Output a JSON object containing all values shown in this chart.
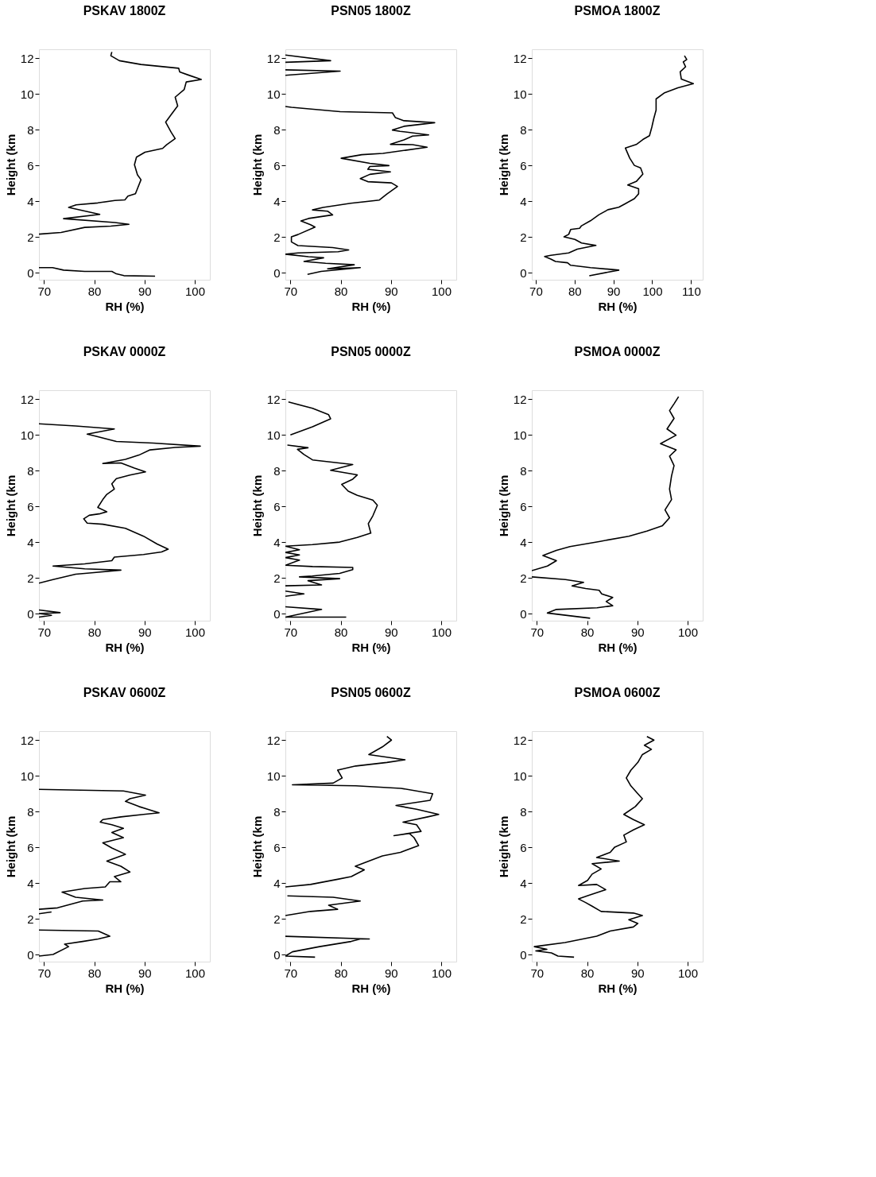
{
  "chart_data": [
    {
      "type": "line",
      "title": "PSKAV 1800Z",
      "xlabel": "RH (%)",
      "ylabel": "Height (km",
      "xlim": [
        69,
        103
      ],
      "ylim": [
        -0.4,
        12.5
      ],
      "xticks": [
        70,
        80,
        90,
        100
      ],
      "yticks": [
        0,
        2,
        4,
        6,
        8,
        10,
        12
      ],
      "grid": false,
      "series": [
        {
          "color": "#000000",
          "x": [
            92.1,
            85.9,
            84.4,
            83.5,
            78.1,
            73.9,
            71.7,
            69,
            null,
            69,
            73.4,
            78.1,
            83.3,
            86.9,
            84.1,
            73.9,
            81.1,
            74.9,
            76.4,
            80.7,
            84.1,
            86.1,
            86.7,
            88.2,
            88.4,
            89.3,
            88.6,
            88.0,
            88.4,
            90.1,
            93.6,
            94.4,
            96.1,
            95.3,
            94.2,
            95.3,
            96.6,
            96.1,
            97.9,
            98.3,
            101.3,
            98.7,
            97.0,
            96.8,
            89.3,
            85.0,
            83.3,
            83.5
          ],
          "values": [
            -0.2,
            -0.17,
            -0.07,
            0.07,
            0.07,
            0.14,
            0.28,
            0.28,
            null,
            2.15,
            2.25,
            2.53,
            2.6,
            2.7,
            2.8,
            3.02,
            3.26,
            3.65,
            3.79,
            3.9,
            4.04,
            4.07,
            4.28,
            4.42,
            4.56,
            5.2,
            5.47,
            6.04,
            6.46,
            6.74,
            6.95,
            7.16,
            7.5,
            7.86,
            8.42,
            8.84,
            9.33,
            9.82,
            10.25,
            10.67,
            10.81,
            11.06,
            11.23,
            11.44,
            11.65,
            11.86,
            12.14,
            12.35
          ]
        }
      ]
    },
    {
      "type": "line",
      "title": "PSN05 1800Z",
      "xlabel": "RH (%)",
      "ylabel": "Height (km",
      "xlim": [
        69,
        103
      ],
      "ylim": [
        -0.4,
        12.5
      ],
      "xticks": [
        70,
        80,
        90,
        100
      ],
      "yticks": [
        0,
        2,
        4,
        6,
        8,
        10,
        12
      ],
      "grid": false,
      "series": [
        {
          "color": "#000000",
          "x": [
            73.4,
            76.1,
            83.9,
            77.4,
            82.7,
            77.0,
            72.7,
            76.6,
            73.6,
            69,
            71.5,
            79.5,
            81.6,
            78.4,
            71.5,
            70.2,
            70.2,
            71.5,
            74.9,
            74.0,
            72.1,
            73.6,
            78.4,
            77.4,
            74.4,
            76.5,
            82.0,
            87.7,
            89.2,
            91.3,
            90.1,
            85.4,
            83.9,
            85.8,
            89.9,
            85.4,
            85.8,
            89.6,
            85.8,
            80.1,
            84.2,
            88.4,
            97.2,
            94.3,
            89.9,
            92.6,
            94.3,
            97.5,
            91.8,
            90.3,
            92.6,
            98.7,
            92.6,
            90.9,
            90.3,
            79.9,
            70.2,
            69,
            null,
            69,
            79.9,
            69,
            null,
            69,
            78.0,
            69
          ],
          "values": [
            -0.1,
            0.07,
            0.28,
            0.21,
            0.44,
            0.52,
            0.62,
            0.83,
            0.89,
            1.03,
            1.1,
            1.17,
            1.27,
            1.4,
            1.51,
            1.72,
            2.0,
            2.13,
            2.55,
            2.68,
            2.89,
            3.03,
            3.23,
            3.44,
            3.51,
            3.65,
            3.88,
            4.06,
            4.4,
            4.82,
            5.02,
            5.09,
            5.26,
            5.5,
            5.64,
            5.78,
            5.94,
            5.99,
            6.12,
            6.4,
            6.6,
            6.67,
            7.02,
            7.16,
            7.18,
            7.43,
            7.64,
            7.71,
            7.91,
            7.98,
            8.19,
            8.39,
            8.5,
            8.67,
            8.94,
            9.01,
            9.25,
            9.3,
            null,
            11.04,
            11.28,
            11.35,
            null,
            11.77,
            11.86,
            12.18
          ]
        }
      ]
    },
    {
      "type": "line",
      "title": "PSMOA 1800Z",
      "xlabel": "RH (%)",
      "ylabel": "Height (km",
      "xlim": [
        69,
        113
      ],
      "ylim": [
        -0.4,
        12.5
      ],
      "xticks": [
        70,
        80,
        90,
        100,
        110
      ],
      "yticks": [
        0,
        2,
        4,
        6,
        8,
        10,
        12
      ],
      "grid": false,
      "series": [
        {
          "color": "#000000",
          "x": [
            83.8,
            91.4,
            84.1,
            79.0,
            78.2,
            75.1,
            73.9,
            72.3,
            73.9,
            78.5,
            80.7,
            85.5,
            81.8,
            80.1,
            77.3,
            78.5,
            79.0,
            81.3,
            81.8,
            84.1,
            86.3,
            88.6,
            91.4,
            93.1,
            95.4,
            96.5,
            96.5,
            93.7,
            95.9,
            97.6,
            97.0,
            95.4,
            94.2,
            93.1,
            95.9,
            97.6,
            99.3,
            99.9,
            100.4,
            101.0,
            101.0,
            103.2,
            106.6,
            110.6,
            107.5,
            107.2,
            108.6,
            108.0,
            108.9,
            108.3
          ],
          "values": [
            -0.18,
            0.14,
            0.28,
            0.41,
            0.55,
            0.62,
            0.76,
            0.9,
            0.97,
            1.1,
            1.31,
            1.52,
            1.66,
            1.86,
            2.0,
            2.14,
            2.41,
            2.48,
            2.62,
            2.9,
            3.24,
            3.52,
            3.66,
            3.86,
            4.14,
            4.41,
            4.69,
            4.9,
            5.1,
            5.52,
            5.86,
            6.0,
            6.41,
            6.97,
            7.17,
            7.45,
            7.66,
            8.14,
            8.62,
            9.1,
            9.72,
            10.07,
            10.34,
            10.58,
            10.83,
            11.24,
            11.52,
            11.79,
            11.93,
            12.14
          ]
        }
      ]
    },
    {
      "type": "line",
      "title": "PSKAV 0000Z",
      "xlabel": "RH (%)",
      "ylabel": "Height (km",
      "xlim": [
        69,
        103
      ],
      "ylim": [
        -0.4,
        12.5
      ],
      "xticks": [
        70,
        80,
        90,
        100
      ],
      "yticks": [
        0,
        2,
        4,
        6,
        8,
        10,
        12
      ],
      "grid": false,
      "series": [
        {
          "color": "#000000",
          "x": [
            69,
            71.5,
            69,
            73.2,
            69,
            null,
            69,
            71.8,
            76.3,
            79.5,
            85.3,
            78.1,
            71.8,
            78.1,
            83.5,
            84.0,
            89.8,
            93.4,
            94.7,
            92.5,
            89.8,
            86.2,
            81.7,
            78.6,
            77.9,
            79.0,
            81.2,
            82.5,
            80.7,
            81.7,
            82.5,
            84.0,
            83.5,
            84.4,
            87.1,
            90.2,
            88.0,
            85.3,
            81.7,
            86.2,
            88.9,
            91.1,
            96.1,
            101.1,
            91.7,
            84.4,
            80.4,
            78.6,
            84.0,
            76.3,
            69
          ],
          "values": [
            -0.2,
            -0.1,
            0,
            0.05,
            0.2,
            null,
            1.7,
            1.9,
            2.2,
            2.28,
            2.43,
            2.5,
            2.66,
            2.78,
            2.96,
            3.16,
            3.3,
            3.45,
            3.6,
            3.89,
            4.33,
            4.77,
            5.0,
            5.06,
            5.3,
            5.5,
            5.59,
            5.7,
            5.94,
            6.38,
            6.67,
            6.97,
            7.26,
            7.55,
            7.75,
            7.93,
            8.14,
            8.43,
            8.4,
            8.63,
            8.87,
            9.16,
            9.3,
            9.37,
            9.54,
            9.63,
            9.92,
            10.04,
            10.33,
            10.5,
            10.62
          ]
        }
      ]
    },
    {
      "type": "line",
      "title": "PSN05 0000Z",
      "xlabel": "RH (%)",
      "ylabel": "Height (km",
      "xlim": [
        69,
        103
      ],
      "ylim": [
        -0.4,
        12.5
      ],
      "xticks": [
        70,
        80,
        90,
        100
      ],
      "yticks": [
        0,
        2,
        4,
        6,
        8,
        10,
        12
      ],
      "grid": false,
      "series": [
        {
          "color": "#000000",
          "x": [
            81.1,
            69,
            76.2,
            69,
            null,
            69,
            72.7,
            69,
            null,
            69,
            76.2,
            73.5,
            79.8,
            71.8,
            74.4,
            79.8,
            82.4,
            82.4,
            74.4,
            69,
            71.8,
            69,
            71.8,
            69,
            71.8,
            69,
            74.4,
            79.8,
            83.3,
            86.0,
            85.5,
            86.4,
            87.3,
            86.4,
            83.3,
            81.5,
            80.2,
            82.4,
            83.3,
            78.0,
            82.4,
            74.4,
            72.7,
            71.4,
            73.5,
            69.4,
            null,
            70,
            74.4,
            78.0,
            77.6,
            74.4,
            69.6
          ],
          "values": [
            -0.2,
            -0.2,
            0.23,
            0.38,
            null,
            0.97,
            1.1,
            1.26,
            null,
            1.55,
            1.6,
            1.84,
            1.95,
            2.05,
            2.1,
            2.25,
            2.46,
            2.58,
            2.63,
            2.7,
            2.99,
            3.13,
            3.28,
            3.42,
            3.57,
            3.77,
            3.86,
            4.0,
            4.26,
            4.5,
            5.03,
            5.47,
            6.06,
            6.35,
            6.62,
            6.85,
            7.23,
            7.52,
            7.76,
            8.02,
            8.34,
            8.6,
            8.9,
            9.19,
            9.28,
            9.43,
            null,
            10.0,
            10.45,
            10.9,
            11.13,
            11.49,
            11.84
          ]
        }
      ]
    },
    {
      "type": "line",
      "title": "PSMOA 0000Z",
      "xlabel": "RH (%)",
      "ylabel": "Height (km",
      "xlim": [
        69,
        103
      ],
      "ylim": [
        -0.4,
        12.5
      ],
      "xticks": [
        70,
        80,
        90,
        100
      ],
      "yticks": [
        0,
        2,
        4,
        6,
        8,
        10,
        12
      ],
      "grid": false,
      "series": [
        {
          "color": "#000000",
          "x": [
            80.6,
            72.1,
            73.9,
            82.0,
            85.1,
            83.8,
            85.1,
            82.9,
            82.4,
            79.7,
            77.0,
            79.3,
            75.7,
            69,
            null,
            69,
            72.1,
            73.9,
            71.2,
            73.9,
            76.6,
            82.6,
            88.3,
            91.9,
            95.0,
            96.4,
            95.5,
            96.8,
            96.4,
            96.8,
            97.3,
            96.4,
            97.7,
            94.6,
            97.7,
            95.9,
            97.3,
            96.4,
            97.3,
            98.2
          ],
          "values": [
            -0.26,
            0.03,
            0.23,
            0.32,
            0.44,
            0.67,
            0.9,
            1.1,
            1.3,
            1.4,
            1.55,
            1.75,
            1.9,
            2.05,
            null,
            2.4,
            2.66,
            2.96,
            3.25,
            3.54,
            3.75,
            4.04,
            4.33,
            4.62,
            4.92,
            5.36,
            5.8,
            6.38,
            6.97,
            7.7,
            8.28,
            8.81,
            9.16,
            9.51,
            9.98,
            10.33,
            10.92,
            11.36,
            11.74,
            12.14
          ]
        }
      ]
    },
    {
      "type": "line",
      "title": "PSKAV 0600Z",
      "xlabel": "RH (%)",
      "ylabel": "Height (km",
      "xlim": [
        69,
        103
      ],
      "ylim": [
        -0.4,
        12.5
      ],
      "xticks": [
        70,
        80,
        90,
        100
      ],
      "yticks": [
        0,
        2,
        4,
        6,
        8,
        10,
        12
      ],
      "grid": false,
      "series": [
        {
          "color": "#000000",
          "x": [
            69,
            71.8,
            74.9,
            74.1,
            77.7,
            80.8,
            83.1,
            80.8,
            69,
            null,
            69,
            71.5,
            null,
            69,
            72.7,
            77.7,
            81.7,
            76.3,
            73.6,
            78.1,
            82.2,
            83.1,
            85.3,
            84.0,
            87.1,
            85.3,
            82.5,
            86.2,
            83.5,
            81.7,
            85.8,
            83.5,
            85.8,
            83.5,
            81.2,
            81.7,
            85.3,
            89.8,
            92.9,
            88.9,
            86.2,
            87.1,
            90.2,
            85.8,
            69
          ],
          "values": [
            -0.09,
            0,
            0.44,
            0.58,
            0.73,
            0.87,
            1.02,
            1.31,
            1.37,
            null,
            2.28,
            2.38,
            null,
            2.53,
            2.61,
            2.99,
            3.05,
            3.2,
            3.49,
            3.69,
            3.78,
            4.07,
            4.07,
            4.36,
            4.62,
            4.94,
            5.23,
            5.61,
            5.96,
            6.25,
            6.54,
            6.83,
            7.06,
            7.26,
            7.41,
            7.55,
            7.7,
            7.84,
            7.93,
            8.28,
            8.57,
            8.72,
            8.92,
            9.15,
            9.24
          ]
        }
      ]
    },
    {
      "type": "line",
      "title": "PSN05 0600Z",
      "xlabel": "RH (%)",
      "ylabel": "Height (km",
      "xlim": [
        69,
        103
      ],
      "ylim": [
        -0.4,
        12.5
      ],
      "xticks": [
        70,
        80,
        90,
        100
      ],
      "yticks": [
        0,
        2,
        4,
        6,
        8,
        10,
        12
      ],
      "grid": false,
      "series": [
        {
          "color": "#000000",
          "x": [
            74.9,
            69,
            70.4,
            75.8,
            82.1,
            83.9,
            85.7,
            69,
            null,
            69,
            74.0,
            79.4,
            77.6,
            83.9,
            78.5,
            69.4,
            null,
            69,
            74.0,
            79.4,
            82.1,
            84.7,
            82.9,
            85.6,
            88.3,
            91.9,
            95.5,
            94.6,
            93.7,
            90.6,
            96.0,
            95.1,
            92.4,
            97.3,
            99.5,
            95.1,
            91.0,
            97.8,
            98.3,
            92.0,
            83.0,
            70.4,
            78.5,
            80.3,
            79.4,
            83.0,
            89.2,
            92.8,
            85.6,
            88.3,
            90.1,
            89.2
          ],
          "values": [
            -0.15,
            -0.09,
            0.15,
            0.44,
            0.73,
            0.87,
            0.87,
            1.02,
            null,
            2.18,
            2.41,
            2.53,
            2.76,
            2.99,
            3.2,
            3.28,
            null,
            3.78,
            3.92,
            4.21,
            4.36,
            4.74,
            4.94,
            5.23,
            5.52,
            5.72,
            6.1,
            6.54,
            6.77,
            6.65,
            6.89,
            7.26,
            7.41,
            7.7,
            7.84,
            8.13,
            8.34,
            8.63,
            9.0,
            9.3,
            9.44,
            9.5,
            9.59,
            9.88,
            10.32,
            10.55,
            10.75,
            10.9,
            11.19,
            11.62,
            12.0,
            12.2
          ]
        }
      ]
    },
    {
      "type": "line",
      "title": "PSMOA 0600Z",
      "xlabel": "RH (%)",
      "ylabel": "Height (km",
      "xlim": [
        69,
        103
      ],
      "ylim": [
        -0.4,
        12.5
      ],
      "xticks": [
        70,
        80,
        90,
        100
      ],
      "yticks": [
        0,
        2,
        4,
        6,
        8,
        10,
        12
      ],
      "grid": false,
      "series": [
        {
          "color": "#000000",
          "x": [
            77.4,
            74.2,
            72.9,
            69.8,
            72.0,
            69.5,
            75.6,
            81.9,
            84.6,
            89.2,
            90.1,
            88.3,
            91.0,
            89.2,
            82.8,
            81.0,
            79.7,
            78.3,
            80.6,
            83.7,
            81.9,
            78.3,
            80.1,
            81.0,
            82.8,
            81.0,
            86.4,
            81.9,
            84.6,
            85.5,
            87.8,
            87.3,
            89.2,
            91.4,
            89.2,
            87.3,
            89.6,
            91.0,
            90.1,
            88.7,
            87.8,
            88.7,
            90.1,
            91.0,
            92.8,
            91.4,
            93.3,
            91.9
          ],
          "values": [
            -0.15,
            -0.09,
            0.09,
            0.2,
            0.29,
            0.44,
            0.67,
            1.02,
            1.31,
            1.54,
            1.74,
            1.95,
            2.18,
            2.32,
            2.41,
            2.7,
            2.91,
            3.11,
            3.34,
            3.63,
            3.92,
            3.86,
            4.15,
            4.5,
            4.79,
            5.08,
            5.23,
            5.43,
            5.72,
            6.01,
            6.3,
            6.68,
            6.97,
            7.26,
            7.55,
            7.84,
            8.28,
            8.72,
            9.0,
            9.44,
            9.88,
            10.31,
            10.75,
            11.19,
            11.48,
            11.71,
            12.0,
            12.2
          ]
        }
      ]
    }
  ]
}
